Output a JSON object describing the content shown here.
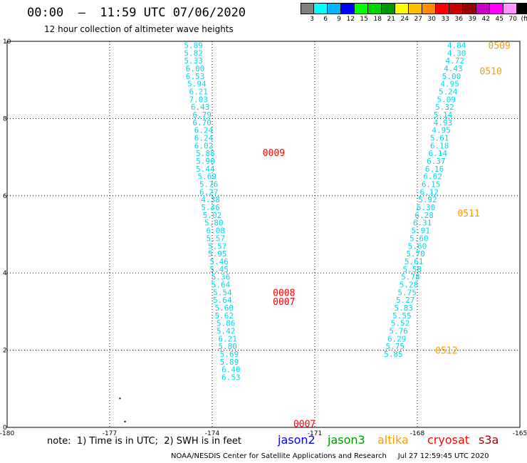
{
  "header": {
    "title": "00:00  –  11:59 UTC 07/06/2020",
    "subtitle": "12 hour collection of altimeter wave heights"
  },
  "colorbar": {
    "colors": [
      "#808080",
      "#00ffff",
      "#00b4ff",
      "#0000ff",
      "#00ff00",
      "#00d200",
      "#009600",
      "#ffff00",
      "#ffbe00",
      "#ff8c00",
      "#ff0000",
      "#c80000",
      "#960000",
      "#c800c8",
      "#ff00ff",
      "#ff96ff",
      "#000000"
    ],
    "labels": [
      "3",
      "6",
      "9",
      "12",
      "15",
      "18",
      "21",
      "24",
      "27",
      "30",
      "33",
      "36",
      "39",
      "42",
      "45",
      "70",
      "(ft)"
    ]
  },
  "note": "note:  1) Time is in UTC;  2) SWH is in feet",
  "missions": [
    {
      "name": "jason2",
      "color": "#0000ff"
    },
    {
      "name": "jason3",
      "color": "#009600"
    },
    {
      "name": "altika",
      "color": "#ff9900"
    },
    {
      "name": "cryosat",
      "color": "#ff0000"
    },
    {
      "name": "s3a",
      "color": "#990000"
    }
  ],
  "footer": "NOAA/NESDIS Center for Satellite Applications and Research     Jul 27 12:59:45 UTC 2020",
  "chart_data": {
    "type": "scatter",
    "title": "00:00 – 11:59 UTC 07/06/2020",
    "subtitle": "12 hour collection of altimeter wave heights",
    "xlim": [
      -180,
      -165
    ],
    "ylim": [
      0,
      10
    ],
    "x_tick_labels": [
      "-180",
      "-177",
      "-174",
      "-171",
      "-168",
      "-165"
    ],
    "y_tick_labels": [
      "0",
      "2",
      "4",
      "6",
      "8",
      "10"
    ],
    "x_ticks": [
      -180,
      -177,
      -174,
      -171,
      -168,
      -165
    ],
    "y_ticks": [
      0,
      2,
      4,
      6,
      8,
      10
    ],
    "grid": true,
    "series": [
      {
        "mission": "jason3",
        "color": "#00d8e8",
        "points": [
          {
            "x": -174.55,
            "y": 9.9,
            "v": "5.89"
          },
          {
            "x": -174.55,
            "y": 9.7,
            "v": "5.82"
          },
          {
            "x": -174.55,
            "y": 9.5,
            "v": "5.33"
          },
          {
            "x": -174.5,
            "y": 9.3,
            "v": "6.00"
          },
          {
            "x": -174.5,
            "y": 9.1,
            "v": "6.53"
          },
          {
            "x": -174.45,
            "y": 8.9,
            "v": "5.94"
          },
          {
            "x": -174.4,
            "y": 8.7,
            "v": "6.21"
          },
          {
            "x": -174.4,
            "y": 8.5,
            "v": "7.03"
          },
          {
            "x": -174.35,
            "y": 8.3,
            "v": "6.43"
          },
          {
            "x": -174.3,
            "y": 8.1,
            "v": "6.79"
          },
          {
            "x": -174.3,
            "y": 7.9,
            "v": "6.70"
          },
          {
            "x": -174.25,
            "y": 7.7,
            "v": "6.24"
          },
          {
            "x": -174.25,
            "y": 7.5,
            "v": "6.24"
          },
          {
            "x": -174.25,
            "y": 7.3,
            "v": "6.02"
          },
          {
            "x": -174.2,
            "y": 7.1,
            "v": "5.88"
          },
          {
            "x": -174.2,
            "y": 6.9,
            "v": "5.90"
          },
          {
            "x": -174.2,
            "y": 6.7,
            "v": "5.44"
          },
          {
            "x": -174.15,
            "y": 6.5,
            "v": "5.69"
          },
          {
            "x": -174.1,
            "y": 6.3,
            "v": "5.76"
          },
          {
            "x": -174.1,
            "y": 6.1,
            "v": "6.27"
          },
          {
            "x": -174.05,
            "y": 5.9,
            "v": "4.38"
          },
          {
            "x": -174.05,
            "y": 5.7,
            "v": "5.46"
          },
          {
            "x": -174.0,
            "y": 5.5,
            "v": "5.02"
          },
          {
            "x": -173.95,
            "y": 5.3,
            "v": "5.80"
          },
          {
            "x": -173.9,
            "y": 5.1,
            "v": "6.08"
          },
          {
            "x": -173.9,
            "y": 4.9,
            "v": "5.57"
          },
          {
            "x": -173.85,
            "y": 4.7,
            "v": "5.57"
          },
          {
            "x": -173.85,
            "y": 4.5,
            "v": "5.95"
          },
          {
            "x": -173.8,
            "y": 4.3,
            "v": "5.46"
          },
          {
            "x": -173.8,
            "y": 4.1,
            "v": "5.45"
          },
          {
            "x": -173.75,
            "y": 3.9,
            "v": "5.36"
          },
          {
            "x": -173.75,
            "y": 3.7,
            "v": "5.64"
          },
          {
            "x": -173.7,
            "y": 3.5,
            "v": "5.54"
          },
          {
            "x": -173.7,
            "y": 3.3,
            "v": "5.64"
          },
          {
            "x": -173.65,
            "y": 3.1,
            "v": "5.60"
          },
          {
            "x": -173.65,
            "y": 2.9,
            "v": "5.62"
          },
          {
            "x": -173.6,
            "y": 2.7,
            "v": "5.86"
          },
          {
            "x": -173.6,
            "y": 2.5,
            "v": "5.42"
          },
          {
            "x": -173.55,
            "y": 2.3,
            "v": "6.21"
          },
          {
            "x": -173.55,
            "y": 2.1,
            "v": "5.80"
          },
          {
            "x": -173.5,
            "y": 1.9,
            "v": "5.69"
          },
          {
            "x": -173.5,
            "y": 1.7,
            "v": "5.89"
          },
          {
            "x": -173.45,
            "y": 1.5,
            "v": "6.40"
          },
          {
            "x": -173.45,
            "y": 1.3,
            "v": "6.53"
          }
        ]
      },
      {
        "mission": "jason3",
        "color": "#00d8e8",
        "points": [
          {
            "x": -166.85,
            "y": 9.9,
            "v": "4.84"
          },
          {
            "x": -166.85,
            "y": 9.7,
            "v": "4.30"
          },
          {
            "x": -166.9,
            "y": 9.5,
            "v": "4.72"
          },
          {
            "x": -166.95,
            "y": 9.3,
            "v": "4.43"
          },
          {
            "x": -167.0,
            "y": 9.1,
            "v": "5.00"
          },
          {
            "x": -167.05,
            "y": 8.9,
            "v": "4.95"
          },
          {
            "x": -167.1,
            "y": 8.7,
            "v": "5.24"
          },
          {
            "x": -167.15,
            "y": 8.5,
            "v": "5.09"
          },
          {
            "x": -167.2,
            "y": 8.3,
            "v": "5.32"
          },
          {
            "x": -167.25,
            "y": 8.1,
            "v": "5.14"
          },
          {
            "x": -167.25,
            "y": 7.9,
            "v": "4.93"
          },
          {
            "x": -167.3,
            "y": 7.7,
            "v": "4.95"
          },
          {
            "x": -167.35,
            "y": 7.5,
            "v": "5.61"
          },
          {
            "x": -167.35,
            "y": 7.3,
            "v": "6.18"
          },
          {
            "x": -167.4,
            "y": 7.1,
            "v": "6.14"
          },
          {
            "x": -167.45,
            "y": 6.9,
            "v": "6.37"
          },
          {
            "x": -167.5,
            "y": 6.7,
            "v": "6.16"
          },
          {
            "x": -167.55,
            "y": 6.5,
            "v": "6.62"
          },
          {
            "x": -167.6,
            "y": 6.3,
            "v": "6.15"
          },
          {
            "x": -167.65,
            "y": 6.1,
            "v": "6.12"
          },
          {
            "x": -167.7,
            "y": 5.9,
            "v": "5.92"
          },
          {
            "x": -167.75,
            "y": 5.7,
            "v": "6.30"
          },
          {
            "x": -167.8,
            "y": 5.5,
            "v": "6.28"
          },
          {
            "x": -167.85,
            "y": 5.3,
            "v": "6.31"
          },
          {
            "x": -167.9,
            "y": 5.1,
            "v": "5.91"
          },
          {
            "x": -167.95,
            "y": 4.9,
            "v": "5.60"
          },
          {
            "x": -168.0,
            "y": 4.7,
            "v": "5.60"
          },
          {
            "x": -168.05,
            "y": 4.5,
            "v": "5.70"
          },
          {
            "x": -168.1,
            "y": 4.3,
            "v": "5.61"
          },
          {
            "x": -168.15,
            "y": 4.1,
            "v": "5.58"
          },
          {
            "x": -168.2,
            "y": 3.9,
            "v": "5.78"
          },
          {
            "x": -168.25,
            "y": 3.7,
            "v": "5.28"
          },
          {
            "x": -168.3,
            "y": 3.5,
            "v": "5.75"
          },
          {
            "x": -168.35,
            "y": 3.3,
            "v": "5.27"
          },
          {
            "x": -168.4,
            "y": 3.1,
            "v": "5.83"
          },
          {
            "x": -168.45,
            "y": 2.9,
            "v": "5.55"
          },
          {
            "x": -168.5,
            "y": 2.7,
            "v": "5.52"
          },
          {
            "x": -168.55,
            "y": 2.5,
            "v": "5.76"
          },
          {
            "x": -168.6,
            "y": 2.3,
            "v": "6.29"
          },
          {
            "x": -168.65,
            "y": 2.1,
            "v": "5.75"
          },
          {
            "x": -168.7,
            "y": 1.9,
            "v": "5.85"
          }
        ]
      }
    ],
    "time_labels": [
      {
        "x": -172.2,
        "y": 7.12,
        "text": "0009",
        "color": "#ff0000"
      },
      {
        "x": -171.9,
        "y": 3.5,
        "text": "0008",
        "color": "#ff0000"
      },
      {
        "x": -171.9,
        "y": 3.27,
        "text": "0007",
        "color": "#ff0000"
      },
      {
        "x": -171.3,
        "y": 0.1,
        "text": "0007",
        "color": "#ff0000"
      },
      {
        "x": -165.6,
        "y": 9.9,
        "text": "0509",
        "color": "#ff9900"
      },
      {
        "x": -165.85,
        "y": 9.23,
        "text": "0510",
        "color": "#ff9900"
      },
      {
        "x": -166.5,
        "y": 5.55,
        "text": "0511",
        "color": "#ff9900"
      },
      {
        "x": -167.15,
        "y": 2.0,
        "text": "0512",
        "color": "#ff9900"
      }
    ],
    "markers": [
      {
        "x": -176.7,
        "y": 0.75
      },
      {
        "x": -176.55,
        "y": 0.15
      }
    ]
  }
}
